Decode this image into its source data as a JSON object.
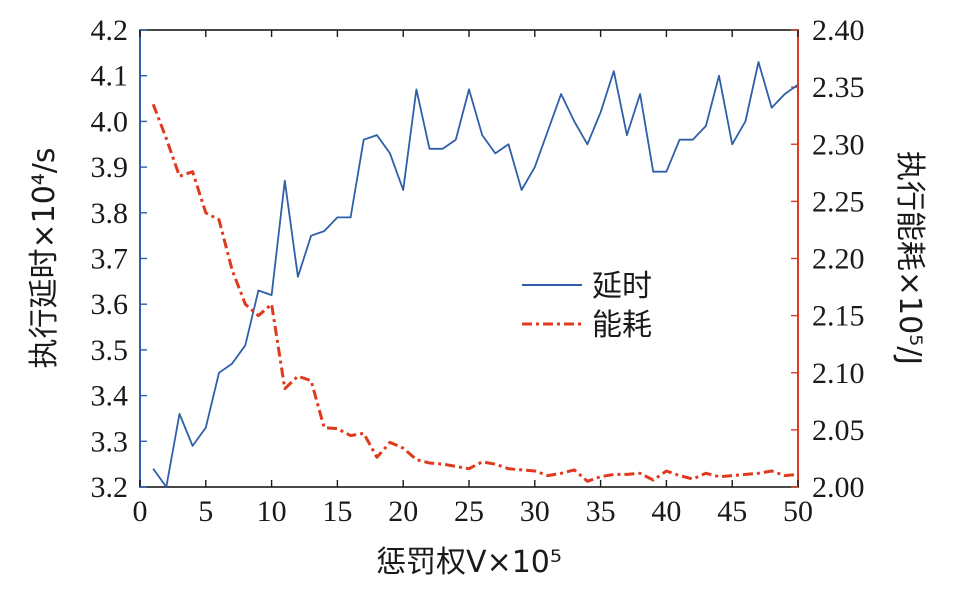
{
  "chart_data": {
    "type": "line",
    "x": [
      1,
      2,
      3,
      4,
      5,
      6,
      7,
      8,
      9,
      10,
      11,
      12,
      13,
      14,
      15,
      16,
      17,
      18,
      19,
      20,
      21,
      22,
      23,
      24,
      25,
      26,
      27,
      28,
      29,
      30,
      31,
      32,
      33,
      34,
      35,
      36,
      37,
      38,
      39,
      40,
      41,
      42,
      43,
      44,
      45,
      46,
      47,
      48,
      49,
      50
    ],
    "xlabel": "惩罚权V×10⁵",
    "xlim": [
      0,
      50
    ],
    "xticks": [
      0,
      5,
      10,
      15,
      20,
      25,
      30,
      35,
      40,
      45,
      50
    ],
    "ylabel_left": "执行延时×10⁴/s",
    "ylim_left": [
      3.2,
      4.2
    ],
    "yticks_left": [
      "3.2",
      "3.3",
      "3.4",
      "3.5",
      "3.6",
      "3.7",
      "3.8",
      "3.9",
      "4.0",
      "4.1",
      "4.2"
    ],
    "ylabel_right": "执行能耗×10⁵/J",
    "ylim_right": [
      2.0,
      2.4
    ],
    "yticks_right": [
      "2.00",
      "2.05",
      "2.10",
      "2.15",
      "2.20",
      "2.25",
      "2.30",
      "2.35",
      "2.40"
    ],
    "grid": false,
    "legend": "center-right",
    "series": [
      {
        "name": "延时",
        "axis": "left",
        "color": "#2f5fa8",
        "style": "solid",
        "values": [
          3.24,
          3.2,
          3.36,
          3.29,
          3.33,
          3.45,
          3.47,
          3.51,
          3.63,
          3.62,
          3.87,
          3.66,
          3.75,
          3.76,
          3.79,
          3.79,
          3.96,
          3.97,
          3.93,
          3.85,
          4.07,
          3.94,
          3.94,
          3.96,
          4.07,
          3.97,
          3.93,
          3.95,
          3.85,
          3.9,
          3.98,
          4.06,
          4.0,
          3.95,
          4.02,
          4.11,
          3.97,
          4.06,
          3.89,
          3.89,
          3.96,
          3.96,
          3.99,
          4.1,
          3.95,
          4.0,
          4.13,
          4.03,
          4.06,
          4.08
        ]
      },
      {
        "name": "能耗",
        "axis": "right",
        "color": "#e03a1e",
        "style": "dashdot",
        "values": [
          2.335,
          2.305,
          2.272,
          2.276,
          2.24,
          2.234,
          2.19,
          2.16,
          2.15,
          2.16,
          2.086,
          2.097,
          2.093,
          2.052,
          2.051,
          2.045,
          2.047,
          2.026,
          2.039,
          2.034,
          2.024,
          2.021,
          2.02,
          2.018,
          2.016,
          2.022,
          2.02,
          2.016,
          2.015,
          2.014,
          2.01,
          2.012,
          2.015,
          2.005,
          2.009,
          2.011,
          2.011,
          2.012,
          2.006,
          2.014,
          2.01,
          2.007,
          2.012,
          2.009,
          2.01,
          2.011,
          2.012,
          2.014,
          2.01,
          2.011
        ]
      }
    ]
  }
}
